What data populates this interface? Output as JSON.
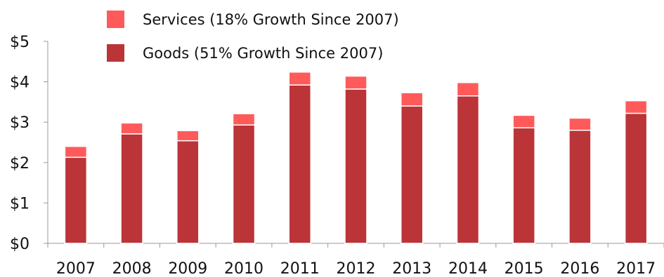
{
  "chart_data": {
    "type": "bar",
    "stacked": true,
    "categories": [
      "2007",
      "2008",
      "2009",
      "2010",
      "2011",
      "2012",
      "2013",
      "2014",
      "2015",
      "2016",
      "2017"
    ],
    "series": [
      {
        "name": "Goods (51% Growth Since 2007)",
        "values": [
          2.13,
          2.71,
          2.54,
          2.93,
          3.92,
          3.82,
          3.4,
          3.65,
          2.86,
          2.8,
          3.22
        ],
        "color": "#bb3438"
      },
      {
        "name": "Services (18% Growth Since 2007)",
        "values": [
          0.27,
          0.27,
          0.25,
          0.28,
          0.32,
          0.32,
          0.33,
          0.33,
          0.31,
          0.3,
          0.31
        ],
        "color": "#ff5a5a"
      }
    ],
    "ylim": [
      0,
      5
    ],
    "yticks": [
      0,
      1,
      2,
      3,
      4,
      5
    ],
    "ytick_labels": [
      "$0",
      "$1",
      "$2",
      "$3",
      "$4",
      "$5"
    ],
    "legend": {
      "placement": "top-left",
      "items": [
        "Services (18% Growth Since 2007)",
        "Goods (51% Growth Since 2007)"
      ],
      "colors": [
        "#ff5a5a",
        "#bb3438"
      ]
    },
    "grid": false
  }
}
